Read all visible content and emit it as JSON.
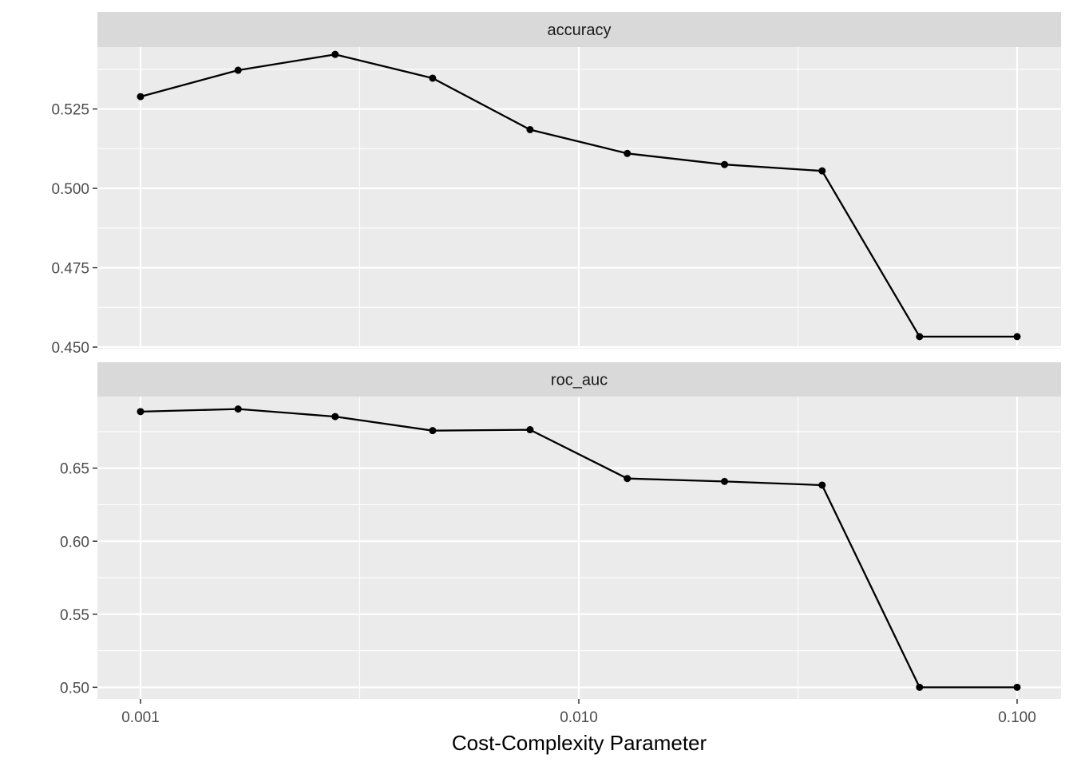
{
  "chart_data": {
    "type": "line",
    "xlabel": "Cost-Complexity Parameter",
    "ylabel": "",
    "x_scale": "log10",
    "xlim": [
      0.001,
      0.1
    ],
    "x_ticks": [
      0.001,
      0.01,
      0.1
    ],
    "x_tick_labels": [
      "0.001",
      "0.010",
      "0.100"
    ],
    "x": [
      0.001,
      0.00167,
      0.00278,
      0.00464,
      0.00774,
      0.0129,
      0.0215,
      0.0359,
      0.0599,
      0.1
    ],
    "grid": true,
    "facets": [
      {
        "label": "accuracy",
        "ylim": [
          0.4495,
          0.5445
        ],
        "y_ticks": [
          0.45,
          0.475,
          0.5,
          0.525
        ],
        "y_tick_labels": [
          "0.450",
          "0.475",
          "0.500",
          "0.525"
        ],
        "values": [
          0.5289,
          0.5372,
          0.5422,
          0.5347,
          0.5185,
          0.511,
          0.5075,
          0.5055,
          0.4533,
          0.4533
        ]
      },
      {
        "label": "roc_auc",
        "ylim": [
          0.492,
          0.699
        ],
        "y_ticks": [
          0.5,
          0.55,
          0.6,
          0.65
        ],
        "y_tick_labels": [
          "0.50",
          "0.55",
          "0.60",
          "0.65"
        ],
        "values": [
          0.6887,
          0.6905,
          0.6853,
          0.6757,
          0.6763,
          0.6429,
          0.6409,
          0.6384,
          0.5,
          0.5
        ]
      }
    ],
    "colors": {
      "panel_background": "#ebebeb",
      "strip_background": "#d9d9d9",
      "grid_line": "#ffffff",
      "series_line": "#000000",
      "tick_text": "#4d4d4d"
    }
  }
}
